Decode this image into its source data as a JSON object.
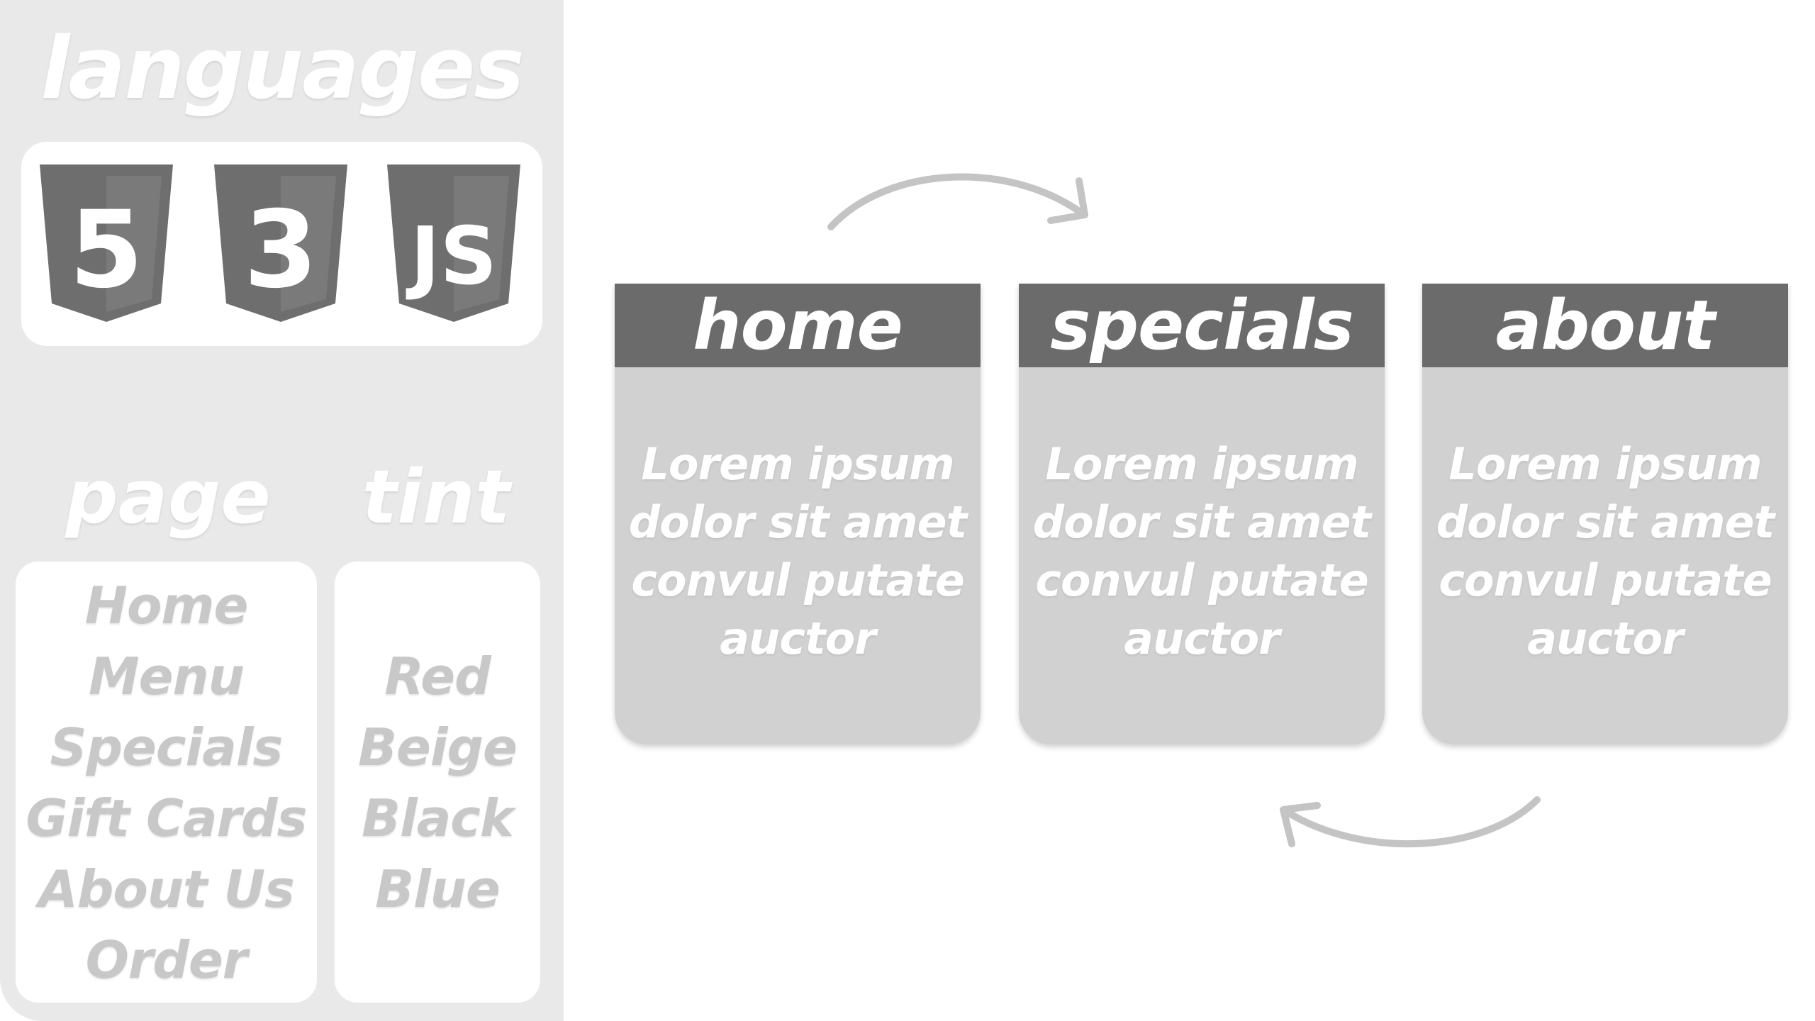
{
  "sidebar": {
    "languages_title": "languages",
    "languages": [
      {
        "name": "HTML5",
        "glyph": "5",
        "icon": "html5-icon"
      },
      {
        "name": "CSS3",
        "glyph": "3",
        "icon": "css3-icon"
      },
      {
        "name": "JavaScript",
        "glyph": "JS",
        "icon": "js-icon"
      }
    ],
    "page_title": "page",
    "pages": [
      "Home",
      "Menu",
      "Specials",
      "Gift Cards",
      "About Us",
      "Order"
    ],
    "tint_title": "tint",
    "tints": [
      "Red",
      "Beige",
      "Black",
      "Blue"
    ]
  },
  "cards": [
    {
      "title": "home",
      "body": "Lorem ipsum dolor sit amet convul putate auctor"
    },
    {
      "title": "specials",
      "body": "Lorem ipsum dolor sit amet convul putate auctor"
    },
    {
      "title": "about",
      "body": "Lorem ipsum dolor sit amet convul putate auctor"
    }
  ],
  "colors": {
    "sidebar_bg": "#e9e9e9",
    "card_header": "#6b6b6b",
    "card_body": "#d1d1d1",
    "list_text": "#c8c8c8",
    "arrow": "#c4c4c4"
  },
  "icons": {
    "arrow_top": "curved-arrow-right-icon",
    "arrow_bottom": "curved-arrow-left-icon"
  }
}
